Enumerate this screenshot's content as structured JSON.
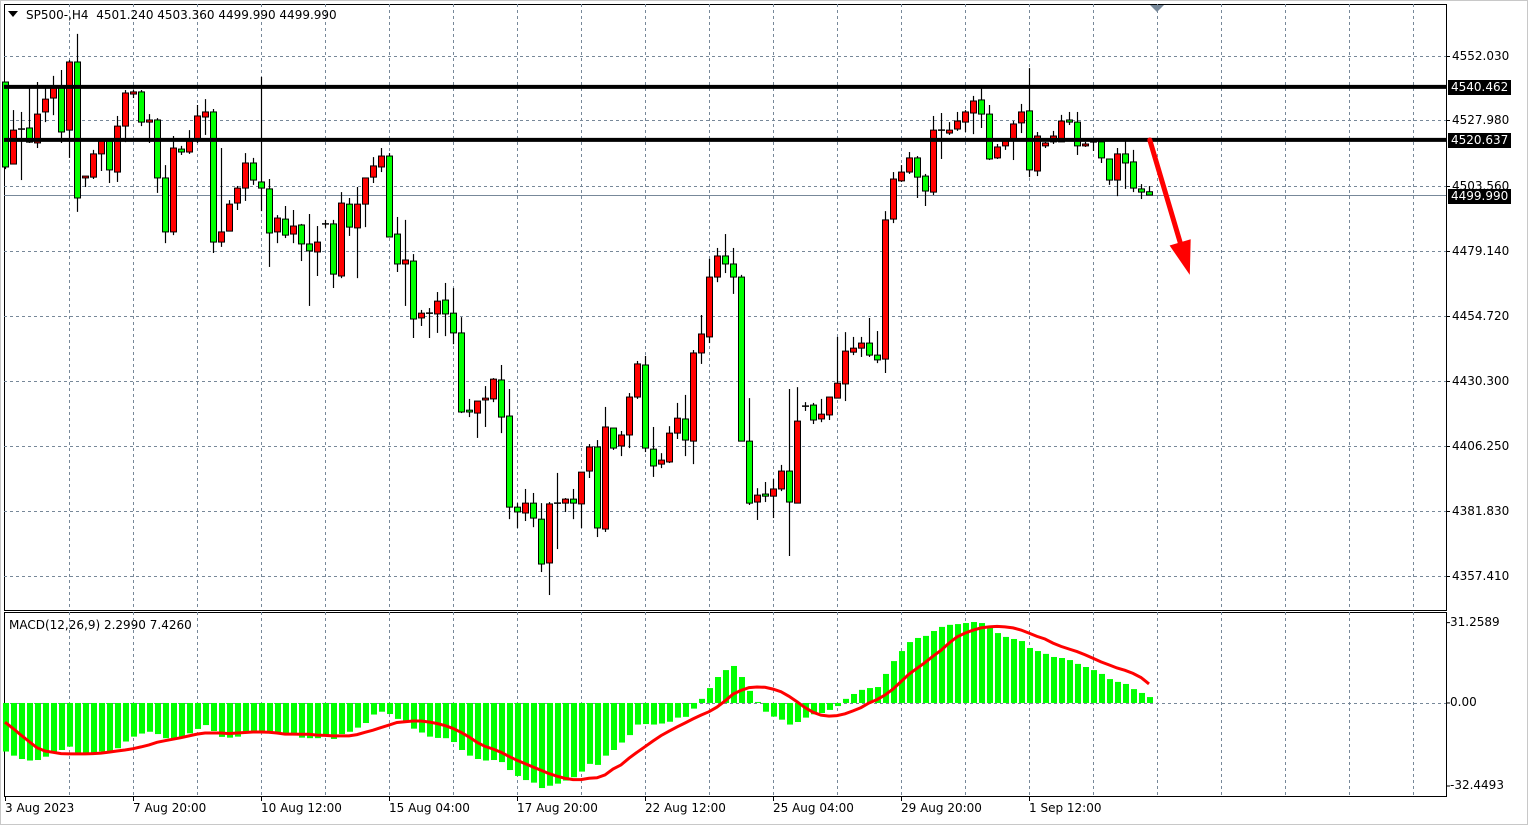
{
  "header": {
    "symbol_timeframe": "SP500-,H4",
    "ohlc_readout": "4501.240 4503.360 4499.990 4499.990"
  },
  "indicator": {
    "label": "MACD(12,26,9) 2.2990 7.4260"
  },
  "price_axis": {
    "ticks": [
      4552.03,
      4527.98,
      4503.56,
      4479.14,
      4454.72,
      4430.3,
      4406.25,
      4381.83,
      4357.41
    ],
    "tick_labels": [
      "4552.030",
      "4527.980",
      "4503.560",
      "4479.140",
      "4454.720",
      "4430.300",
      "4406.250",
      "4381.830",
      "4357.410"
    ],
    "range": [
      4344.7,
      4571.5
    ]
  },
  "levels": [
    {
      "value": 4540.462,
      "label": "4540.462",
      "color": "#000000"
    },
    {
      "value": 4520.637,
      "label": "4520.637",
      "color": "#000000"
    }
  ],
  "bid": {
    "value": 4499.99,
    "label": "4499.990",
    "line_color": "#778899"
  },
  "macd_axis": {
    "ticks": [
      31.2589,
      0,
      -32.4493
    ],
    "tick_labels": [
      "31.2589",
      "0.00",
      "-32.4493"
    ],
    "range": [
      -36.2,
      35.4
    ]
  },
  "time_axis": {
    "labels": [
      "3 Aug 2023",
      "7 Aug 20:00",
      "10 Aug 12:00",
      "15 Aug 04:00",
      "17 Aug 20:00",
      "22 Aug 12:00",
      "25 Aug 04:00",
      "29 Aug 20:00",
      "1 Sep 12:00"
    ],
    "bars_per_label": 16
  },
  "colors": {
    "bull_candle": "#ff0000",
    "bear_candle": "#00ff00",
    "histogram": "#00ff00",
    "signal": "#ff0000",
    "grid": "#778899",
    "annotation_arrow": "#ff0000"
  },
  "annotation": {
    "type": "arrow",
    "direction": "down",
    "from": {
      "bar": 143.1,
      "price": 4520.6
    },
    "to": {
      "bar": 148.1,
      "price": 4470.1
    }
  },
  "chart_data": [
    {
      "type": "candlestick",
      "title": "SP500-,H4",
      "timeframe": "H4",
      "ohlc": [
        [
          4542.3,
          4542.3,
          4509.7,
          4510.5
        ],
        [
          4511.6,
          4531.8,
          4511.6,
          4524.3
        ],
        [
          4524.7,
          4531.1,
          4505.6,
          4524.7
        ],
        [
          4525.1,
          4540.1,
          4519.5,
          4519.8
        ],
        [
          4519.5,
          4542.3,
          4517.6,
          4530.3
        ],
        [
          4531.1,
          4540.1,
          4527.3,
          4535.9
        ],
        [
          4536.3,
          4544.6,
          4529.9,
          4540.1
        ],
        [
          4540.4,
          4546.8,
          4519.5,
          4523.6
        ],
        [
          4524.3,
          4550.5,
          4513.9,
          4549.8
        ],
        [
          4549.8,
          4560.3,
          4493.7,
          4498.9
        ],
        [
          4506.4,
          4507.1,
          4503.0,
          4507.1
        ],
        [
          4506.7,
          4516.9,
          4506.0,
          4515.4
        ],
        [
          4515.4,
          4520.2,
          4509.0,
          4520.2
        ],
        [
          4520.2,
          4521.0,
          4504.5,
          4509.4
        ],
        [
          4508.6,
          4529.6,
          4504.9,
          4525.8
        ],
        [
          4525.8,
          4539.3,
          4519.8,
          4538.2
        ],
        [
          4537.8,
          4539.3,
          4536.3,
          4538.6
        ],
        [
          4538.6,
          4539.3,
          4525.8,
          4527.3
        ],
        [
          4527.3,
          4530.3,
          4519.5,
          4528.1
        ],
        [
          4528.1,
          4528.8,
          4500.8,
          4506.4
        ],
        [
          4506.4,
          4511.2,
          4482.0,
          4486.2
        ],
        [
          4486.2,
          4522.1,
          4485.0,
          4517.6
        ],
        [
          4517.2,
          4518.4,
          4515.0,
          4516.1
        ],
        [
          4516.1,
          4524.3,
          4515.4,
          4520.2
        ],
        [
          4520.6,
          4533.7,
          4519.5,
          4529.6
        ],
        [
          4529.2,
          4535.9,
          4522.5,
          4531.1
        ],
        [
          4531.1,
          4532.2,
          4478.3,
          4482.4
        ],
        [
          4482.4,
          4517.6,
          4480.6,
          4486.2
        ],
        [
          4486.5,
          4498.1,
          4486.5,
          4496.6
        ],
        [
          4497.0,
          4503.4,
          4494.4,
          4502.6
        ],
        [
          4502.6,
          4515.7,
          4497.8,
          4512.0
        ],
        [
          4512.0,
          4513.9,
          4503.8,
          4505.6
        ],
        [
          4504.9,
          4544.2,
          4494.0,
          4502.6
        ],
        [
          4502.3,
          4506.0,
          4473.1,
          4485.8
        ],
        [
          4486.2,
          4492.5,
          4482.0,
          4491.4
        ],
        [
          4491.0,
          4495.9,
          4483.9,
          4485.0
        ],
        [
          4485.4,
          4494.4,
          4482.0,
          4488.4
        ],
        [
          4488.8,
          4489.2,
          4475.3,
          4481.7
        ],
        [
          4481.7,
          4492.9,
          4458.5,
          4479.1
        ],
        [
          4478.7,
          4488.4,
          4469.7,
          4482.4
        ],
        [
          4489.2,
          4490.7,
          4487.7,
          4489.2
        ],
        [
          4489.2,
          4490.7,
          4465.2,
          4470.4
        ],
        [
          4469.7,
          4501.1,
          4468.9,
          4497.0
        ],
        [
          4496.6,
          4498.9,
          4484.7,
          4488.0
        ],
        [
          4487.7,
          4503.0,
          4468.9,
          4496.6
        ],
        [
          4496.6,
          4506.4,
          4488.0,
          4506.4
        ],
        [
          4506.7,
          4514.2,
          4504.5,
          4510.9
        ],
        [
          4510.5,
          4517.6,
          4508.6,
          4514.6
        ],
        [
          4514.6,
          4515.7,
          4484.3,
          4484.3
        ],
        [
          4485.4,
          4491.8,
          4471.2,
          4474.2
        ],
        [
          4474.2,
          4490.7,
          4458.5,
          4475.7
        ],
        [
          4475.3,
          4477.9,
          4446.5,
          4453.6
        ],
        [
          4454.0,
          4457.0,
          4451.0,
          4455.8
        ],
        [
          4455.8,
          4457.7,
          4446.5,
          4455.8
        ],
        [
          4455.5,
          4463.7,
          4448.4,
          4460.3
        ],
        [
          4460.7,
          4467.1,
          4447.2,
          4455.5
        ],
        [
          4455.8,
          4465.2,
          4444.2,
          4448.4
        ],
        [
          4448.4,
          4454.3,
          4418.4,
          4418.8
        ],
        [
          4419.5,
          4423.7,
          4416.9,
          4418.8
        ],
        [
          4418.4,
          4422.9,
          4409.1,
          4422.9
        ],
        [
          4423.3,
          4428.5,
          4413.2,
          4424.0
        ],
        [
          4423.7,
          4431.5,
          4422.5,
          4431.1
        ],
        [
          4430.8,
          4436.4,
          4410.9,
          4416.9
        ],
        [
          4417.3,
          4427.4,
          4378.7,
          4383.2
        ],
        [
          4383.2,
          4384.7,
          4375.4,
          4381.4
        ],
        [
          4381.0,
          4390.0,
          4378.0,
          4384.7
        ],
        [
          4384.7,
          4388.5,
          4375.7,
          4379.1
        ],
        [
          4378.7,
          4384.7,
          4358.9,
          4361.9
        ],
        [
          4362.3,
          4385.1,
          4350.3,
          4384.4
        ],
        [
          4384.7,
          4396.0,
          4367.5,
          4384.7
        ],
        [
          4384.7,
          4386.6,
          4381.4,
          4386.2
        ],
        [
          4386.2,
          4390.0,
          4378.7,
          4384.7
        ],
        [
          4384.4,
          4396.3,
          4375.4,
          4396.3
        ],
        [
          4396.7,
          4406.8,
          4394.1,
          4405.7
        ],
        [
          4405.7,
          4408.3,
          4372.0,
          4375.4
        ],
        [
          4375.0,
          4420.7,
          4373.9,
          4413.2
        ],
        [
          4412.8,
          4412.8,
          4404.6,
          4405.3
        ],
        [
          4406.1,
          4411.7,
          4402.3,
          4410.2
        ],
        [
          4410.2,
          4425.9,
          4405.3,
          4424.4
        ],
        [
          4424.4,
          4437.9,
          4423.7,
          4436.8
        ],
        [
          4436.4,
          4439.8,
          4403.8,
          4405.3
        ],
        [
          4404.9,
          4413.2,
          4394.5,
          4398.6
        ],
        [
          4399.3,
          4403.4,
          4397.8,
          4400.8
        ],
        [
          4400.1,
          4413.5,
          4399.7,
          4410.9
        ],
        [
          4410.9,
          4422.2,
          4408.7,
          4416.5
        ],
        [
          4416.2,
          4425.2,
          4402.3,
          4408.3
        ],
        [
          4407.9,
          4442.0,
          4399.3,
          4440.9
        ],
        [
          4440.9,
          4455.1,
          4436.8,
          4448.0
        ],
        [
          4446.9,
          4476.1,
          4444.6,
          4469.3
        ],
        [
          4469.3,
          4480.2,
          4467.4,
          4477.2
        ],
        [
          4477.2,
          4485.4,
          4470.8,
          4474.2
        ],
        [
          4474.2,
          4480.2,
          4463.0,
          4469.3
        ],
        [
          4469.3,
          4470.1,
          4407.9,
          4407.9
        ],
        [
          4407.9,
          4424.0,
          4384.0,
          4384.7
        ],
        [
          4385.1,
          4390.3,
          4378.4,
          4387.7
        ],
        [
          4388.1,
          4392.6,
          4385.1,
          4387.3
        ],
        [
          4387.3,
          4393.7,
          4379.1,
          4390.0
        ],
        [
          4390.0,
          4399.0,
          4389.2,
          4396.7
        ],
        [
          4396.7,
          4427.4,
          4364.9,
          4385.1
        ],
        [
          4384.7,
          4428.1,
          4384.7,
          4415.4
        ],
        [
          4421.0,
          4422.5,
          4419.2,
          4421.0
        ],
        [
          4421.4,
          4422.2,
          4414.3,
          4415.8
        ],
        [
          4416.2,
          4423.7,
          4415.0,
          4418.0
        ],
        [
          4417.7,
          4424.4,
          4415.8,
          4424.4
        ],
        [
          4424.0,
          4446.9,
          4424.0,
          4429.6
        ],
        [
          4429.3,
          4448.7,
          4422.9,
          4441.6
        ],
        [
          4441.2,
          4446.9,
          4440.1,
          4442.7
        ],
        [
          4442.7,
          4446.9,
          4439.4,
          4444.6
        ],
        [
          4444.6,
          4454.0,
          4439.4,
          4440.1
        ],
        [
          4440.1,
          4449.1,
          4437.1,
          4438.3
        ],
        [
          4438.6,
          4494.0,
          4433.4,
          4490.7
        ],
        [
          4491.0,
          4508.6,
          4489.5,
          4506.0
        ],
        [
          4505.3,
          4511.2,
          4504.9,
          4508.6
        ],
        [
          4508.6,
          4516.1,
          4507.9,
          4513.9
        ],
        [
          4513.9,
          4514.6,
          4498.9,
          4506.7
        ],
        [
          4507.1,
          4507.9,
          4495.9,
          4501.5
        ],
        [
          4501.1,
          4529.6,
          4500.0,
          4524.3
        ],
        [
          4524.3,
          4530.7,
          4513.5,
          4524.3
        ],
        [
          4523.2,
          4527.3,
          4522.5,
          4524.3
        ],
        [
          4524.7,
          4531.1,
          4524.0,
          4527.7
        ],
        [
          4527.3,
          4531.8,
          4523.6,
          4531.1
        ],
        [
          4530.7,
          4537.1,
          4522.8,
          4535.2
        ],
        [
          4535.6,
          4540.4,
          4525.1,
          4530.3
        ],
        [
          4530.3,
          4533.7,
          4513.1,
          4513.5
        ],
        [
          4513.9,
          4519.1,
          4513.5,
          4518.0
        ],
        [
          4518.4,
          4521.0,
          4516.9,
          4520.2
        ],
        [
          4520.6,
          4527.7,
          4513.1,
          4526.6
        ],
        [
          4527.0,
          4534.1,
          4523.2,
          4531.1
        ],
        [
          4531.5,
          4547.5,
          4506.7,
          4509.4
        ],
        [
          4509.0,
          4523.6,
          4507.1,
          4522.1
        ],
        [
          4518.4,
          4519.9,
          4517.6,
          4519.5
        ],
        [
          4519.9,
          4524.0,
          4519.1,
          4522.1
        ],
        [
          4519.9,
          4530.0,
          4519.9,
          4527.7
        ],
        [
          4528.1,
          4531.1,
          4526.2,
          4527.3
        ],
        [
          4527.3,
          4531.1,
          4515.0,
          4518.4
        ],
        [
          4518.4,
          4519.9,
          4518.0,
          4519.1
        ],
        [
          4519.9,
          4521.0,
          4516.5,
          4519.9
        ],
        [
          4519.9,
          4520.6,
          4512.0,
          4513.9
        ],
        [
          4513.5,
          4513.5,
          4503.8,
          4505.6
        ],
        [
          4505.6,
          4517.6,
          4499.6,
          4515.4
        ],
        [
          4515.4,
          4520.6,
          4502.3,
          4512.0
        ],
        [
          4512.4,
          4516.9,
          4501.1,
          4502.6
        ],
        [
          4502.3,
          4504.1,
          4498.5,
          4501.1
        ],
        [
          4501.24,
          4503.36,
          4499.99,
          4499.99
        ]
      ]
    },
    {
      "type": "bar+line",
      "title": "MACD(12,26,9)",
      "macd": [
        -18.9,
        -20.5,
        -21.8,
        -22.4,
        -22.2,
        -20.9,
        -19.6,
        -18.3,
        -17.0,
        -19.3,
        -19.3,
        -19.3,
        -18.9,
        -18.9,
        -17.6,
        -15.0,
        -13.1,
        -11.9,
        -11.2,
        -12.1,
        -13.7,
        -14.0,
        -13.5,
        -11.8,
        -10.1,
        -8.6,
        -10.9,
        -13.2,
        -13.5,
        -13.1,
        -11.8,
        -11.4,
        -11.2,
        -11.2,
        -11.4,
        -11.8,
        -12.1,
        -13.5,
        -13.7,
        -13.7,
        -12.5,
        -14.0,
        -12.1,
        -11.2,
        -9.6,
        -7.8,
        -4.5,
        -3.4,
        -4.3,
        -6.2,
        -7.0,
        -10.0,
        -11.5,
        -13.1,
        -13.6,
        -13.7,
        -15.2,
        -18.3,
        -20.5,
        -21.8,
        -22.4,
        -22.2,
        -23.0,
        -26.1,
        -28.4,
        -30.0,
        -31.0,
        -33.1,
        -32.2,
        -31.4,
        -30.2,
        -28.9,
        -26.7,
        -23.7,
        -24.1,
        -20.5,
        -18.3,
        -15.4,
        -12.5,
        -8.4,
        -8.2,
        -8.4,
        -8.0,
        -7.3,
        -5.7,
        -5.4,
        -2.2,
        1.6,
        5.8,
        10.1,
        12.8,
        14.4,
        10.1,
        4.7,
        0.4,
        -3.4,
        -5.3,
        -6.5,
        -8.4,
        -7.4,
        -5.7,
        -4.4,
        -3.9,
        -2.7,
        -1.2,
        1.6,
        3.5,
        5.1,
        5.8,
        6.2,
        11.3,
        16.3,
        20.2,
        23.7,
        25.3,
        26.1,
        28.0,
        29.6,
        30.4,
        30.7,
        31.1,
        31.5,
        31.1,
        29.2,
        27.2,
        25.7,
        24.9,
        24.1,
        21.4,
        20.2,
        19.1,
        17.9,
        17.5,
        16.7,
        15.2,
        14.0,
        12.8,
        11.3,
        9.3,
        8.2,
        7.4,
        5.4,
        3.9,
        2.299
      ],
      "signal": [
        -7.5,
        -9.9,
        -12.5,
        -15.0,
        -17.4,
        -18.7,
        -19.2,
        -19.7,
        -19.8,
        -19.8,
        -19.8,
        -19.7,
        -19.5,
        -19.1,
        -18.7,
        -18.3,
        -17.8,
        -17.1,
        -16.3,
        -15.3,
        -14.7,
        -14.1,
        -13.5,
        -12.8,
        -12.1,
        -11.7,
        -11.7,
        -11.7,
        -11.9,
        -11.7,
        -11.5,
        -11.3,
        -11.3,
        -11.4,
        -11.7,
        -12.1,
        -12.1,
        -12.2,
        -12.2,
        -12.5,
        -12.6,
        -12.8,
        -12.8,
        -12.8,
        -12.3,
        -11.4,
        -10.6,
        -9.6,
        -8.6,
        -7.6,
        -7.3,
        -7.0,
        -7.0,
        -7.4,
        -8.0,
        -8.8,
        -9.9,
        -11.4,
        -13.2,
        -15.3,
        -16.9,
        -17.9,
        -19.2,
        -20.8,
        -22.3,
        -23.6,
        -24.9,
        -26.2,
        -27.5,
        -28.5,
        -29.3,
        -29.8,
        -29.8,
        -29.3,
        -29.1,
        -28.0,
        -25.7,
        -24.1,
        -21.5,
        -19.2,
        -17.0,
        -14.8,
        -12.7,
        -11.0,
        -9.3,
        -7.8,
        -6.2,
        -4.7,
        -3.4,
        -1.6,
        0.8,
        3.4,
        4.9,
        6.0,
        6.2,
        6.1,
        5.4,
        4.4,
        2.6,
        0.5,
        -1.8,
        -3.6,
        -4.7,
        -5.1,
        -4.9,
        -4.2,
        -3.1,
        -1.8,
        0.0,
        1.3,
        3.1,
        5.4,
        8.3,
        11.2,
        13.5,
        15.7,
        18.2,
        20.5,
        23.3,
        25.7,
        27.2,
        28.3,
        29.2,
        29.6,
        29.8,
        29.6,
        29.2,
        28.4,
        27.2,
        25.9,
        24.9,
        23.3,
        22.0,
        21.0,
        20.0,
        18.8,
        17.4,
        16.0,
        14.8,
        13.6,
        12.7,
        11.5,
        9.9,
        7.426
      ]
    }
  ]
}
